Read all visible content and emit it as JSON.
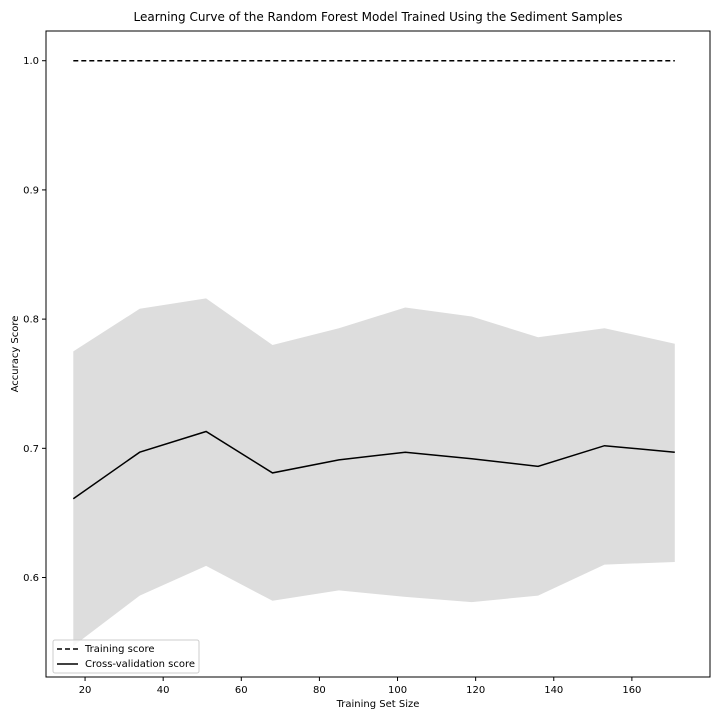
{
  "chart_data": {
    "type": "line",
    "title": "Learning Curve of the Random Forest Model Trained Using the Sediment Samples",
    "xlabel": "Training Set Size",
    "ylabel": "Accuracy Score",
    "xlim": [
      10,
      180
    ],
    "ylim": [
      0.523,
      1.023
    ],
    "xticks": [
      20,
      40,
      60,
      80,
      100,
      120,
      140,
      160
    ],
    "yticks": [
      0.6,
      0.7,
      0.8,
      0.9,
      1.0
    ],
    "xtick_labels": [
      "20",
      "40",
      "60",
      "80",
      "100",
      "120",
      "140",
      "160"
    ],
    "ytick_labels": [
      "0.6",
      "0.7",
      "0.8",
      "0.9",
      "1.0"
    ],
    "grid": false,
    "legend_position": "lower-left",
    "x": [
      17,
      34,
      51,
      68,
      85,
      102,
      119,
      136,
      153,
      171
    ],
    "series": [
      {
        "name": "Training score",
        "style": "dashed",
        "color": "#000000",
        "values": [
          1.0,
          1.0,
          1.0,
          1.0,
          1.0,
          1.0,
          1.0,
          1.0,
          1.0,
          1.0
        ]
      },
      {
        "name": "Cross-validation score",
        "style": "solid",
        "color": "#000000",
        "values": [
          0.661,
          0.697,
          0.713,
          0.681,
          0.691,
          0.697,
          0.692,
          0.686,
          0.702,
          0.697
        ]
      }
    ],
    "band": {
      "color": "#dddddd",
      "lower": [
        0.547,
        0.586,
        0.609,
        0.582,
        0.59,
        0.585,
        0.581,
        0.586,
        0.61,
        0.612
      ],
      "upper": [
        0.775,
        0.808,
        0.816,
        0.78,
        0.793,
        0.809,
        0.802,
        0.786,
        0.793,
        0.781
      ]
    }
  }
}
